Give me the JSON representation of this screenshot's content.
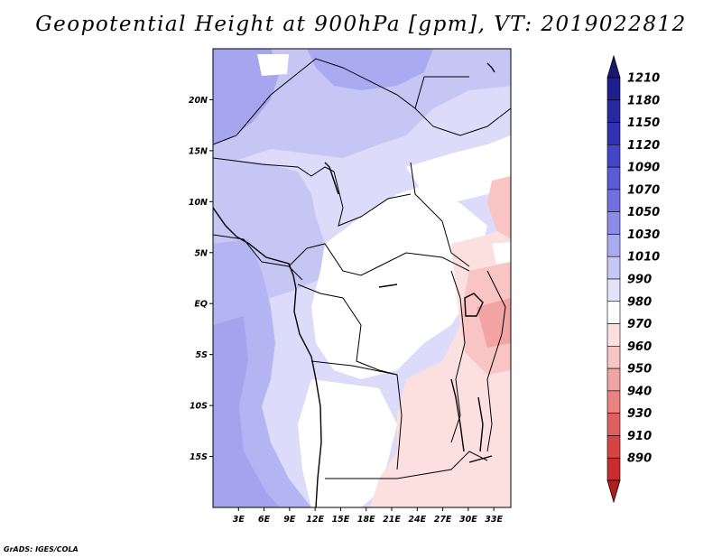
{
  "title": "Geopotential Height at 900hPa [gpm], VT: 2019022812",
  "credit": "GrADS: IGES/COLA",
  "map": {
    "lat_range": [
      -20,
      25
    ],
    "lon_range": [
      0,
      35
    ],
    "lat_ticks": [
      {
        "value": 20,
        "label": "20N"
      },
      {
        "value": 15,
        "label": "15N"
      },
      {
        "value": 10,
        "label": "10N"
      },
      {
        "value": 5,
        "label": "5N"
      },
      {
        "value": 0,
        "label": "EQ"
      },
      {
        "value": -5,
        "label": "5S"
      },
      {
        "value": -10,
        "label": "10S"
      },
      {
        "value": -15,
        "label": "15S"
      }
    ],
    "lon_ticks": [
      {
        "value": 3,
        "label": "3E"
      },
      {
        "value": 6,
        "label": "6E"
      },
      {
        "value": 9,
        "label": "9E"
      },
      {
        "value": 12,
        "label": "12E"
      },
      {
        "value": 15,
        "label": "15E"
      },
      {
        "value": 18,
        "label": "18E"
      },
      {
        "value": 21,
        "label": "21E"
      },
      {
        "value": 24,
        "label": "24E"
      },
      {
        "value": 27,
        "label": "27E"
      },
      {
        "value": 30,
        "label": "30E"
      },
      {
        "value": 33,
        "label": "33E"
      }
    ]
  },
  "colorbar": {
    "levels": [
      {
        "label": "1210",
        "color": "#1e1e8c"
      },
      {
        "label": "1180",
        "color": "#2828a0"
      },
      {
        "label": "1150",
        "color": "#3232b4"
      },
      {
        "label": "1120",
        "color": "#4646c8"
      },
      {
        "label": "1090",
        "color": "#5a5ad6"
      },
      {
        "label": "1070",
        "color": "#7070e0"
      },
      {
        "label": "1050",
        "color": "#8c8ce8"
      },
      {
        "label": "1030",
        "color": "#aaaaf0"
      },
      {
        "label": "1010",
        "color": "#c8c8f6"
      },
      {
        "label": "990",
        "color": "#e2e2fa"
      },
      {
        "label": "980",
        "color": "#ffffff"
      },
      {
        "label": "970",
        "color": "#fce0e0"
      },
      {
        "label": "960",
        "color": "#f8c4c4"
      },
      {
        "label": "950",
        "color": "#f2a4a4"
      },
      {
        "label": "940",
        "color": "#ea8282"
      },
      {
        "label": "930",
        "color": "#e06060"
      },
      {
        "label": "910",
        "color": "#d64444"
      },
      {
        "label": "890",
        "color": "#c82c2c"
      }
    ],
    "top_color": "#191970",
    "bottom_color": "#b41e1e"
  }
}
